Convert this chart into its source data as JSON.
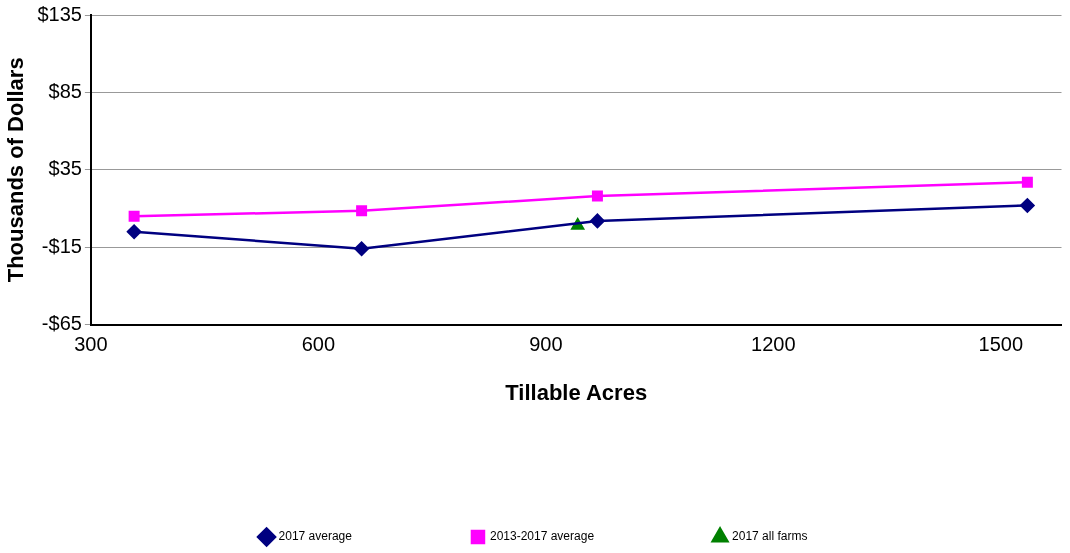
{
  "chart_data": {
    "type": "line",
    "xlabel": "Tillable Acres",
    "ylabel": "Thousands of Dollars",
    "xlim": [
      300,
      1580
    ],
    "xticks": [
      300,
      600,
      900,
      1200,
      1500
    ],
    "ylim": [
      -65,
      135
    ],
    "yticks": [
      {
        "value": -65,
        "label": "-$65"
      },
      {
        "value": -15,
        "label": "-$15"
      },
      {
        "value": 35,
        "label": "$35"
      },
      {
        "value": 85,
        "label": "$85"
      },
      {
        "value": 135,
        "label": "$135"
      }
    ],
    "grid": "y",
    "legend": "bottom",
    "series": [
      {
        "name": "2017 average",
        "color": "#000080",
        "marker": "diamond",
        "x": [
          357,
          657,
          968,
          1535
        ],
        "values": [
          -5,
          -16,
          2,
          12
        ]
      },
      {
        "name": "2013-2017 average",
        "color": "#ff00ff",
        "marker": "square",
        "x": [
          357,
          657,
          968,
          1535
        ],
        "values": [
          5,
          8.5,
          18,
          27
        ]
      },
      {
        "name": "2017 all farms",
        "color": "#008000",
        "marker": "triangle",
        "x": [
          942
        ],
        "values": [
          -1
        ]
      }
    ]
  }
}
